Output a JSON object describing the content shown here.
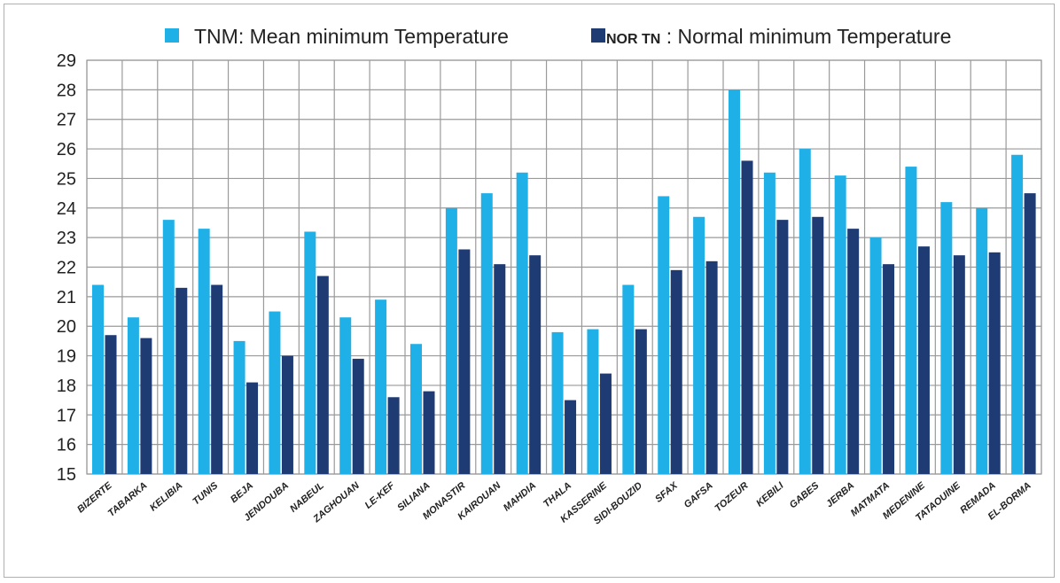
{
  "chart_data": {
    "type": "bar",
    "categories": [
      "BIZERTE",
      "TABARKA",
      "KELIBIA",
      "TUNIS",
      "BEJA",
      "JENDOUBA",
      "NABEUL",
      "ZAGHOUAN",
      "LE-KEF",
      "SILIANA",
      "MONASTIR",
      "KAIROUAN",
      "MAHDIA",
      "THALA",
      "KASSERINE",
      "SIDI-BOUZID",
      "SFAX",
      "GAFSA",
      "TOZEUR",
      "KEBILI",
      "GABES",
      "JERBA",
      "MATMATA",
      "MEDENINE",
      "TATAOUINE",
      "REMADA",
      "EL-BORMA"
    ],
    "series": [
      {
        "name": "TNM: Mean minimum Temperature",
        "color": "#1fb0e8",
        "values": [
          21.4,
          20.3,
          23.6,
          23.3,
          19.5,
          20.5,
          23.2,
          20.3,
          20.9,
          19.4,
          24.0,
          24.5,
          25.2,
          19.8,
          19.9,
          21.4,
          24.4,
          23.7,
          28.0,
          25.2,
          26.0,
          25.1,
          23.0,
          25.4,
          24.2,
          24.0,
          25.8
        ]
      },
      {
        "name": "NOR TN : Normal minimum Temperature",
        "color": "#1f3b73",
        "values": [
          19.7,
          19.6,
          21.3,
          21.4,
          18.1,
          19.0,
          21.7,
          18.9,
          17.6,
          17.8,
          22.6,
          22.1,
          22.4,
          17.5,
          18.4,
          19.9,
          21.9,
          22.2,
          25.6,
          23.6,
          23.7,
          23.3,
          22.1,
          22.7,
          22.4,
          22.5,
          24.5
        ]
      }
    ],
    "yticks": [
      15,
      16,
      17,
      18,
      19,
      20,
      21,
      22,
      23,
      24,
      25,
      26,
      27,
      28,
      29
    ],
    "ylim": [
      15,
      29
    ],
    "grid": true,
    "legend": "top",
    "legend_labels": {
      "series1": "TNM: Mean minimum Temperature",
      "series2_prefix": "NOR TN",
      "series2_rest": " : Normal minimum Temperature"
    }
  }
}
